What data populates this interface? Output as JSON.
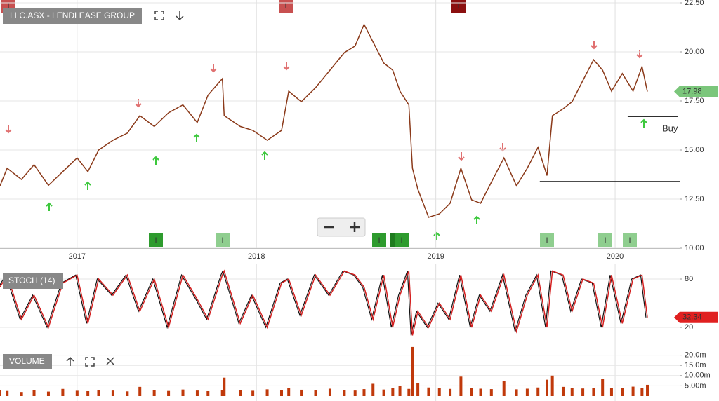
{
  "chart_data": [
    {
      "type": "line",
      "title": "LLC.ASX - LENDLEASE GROUP",
      "color": "#8b3a1a",
      "x": [
        2016.57,
        2016.61,
        2016.69,
        2016.76,
        2016.84,
        2016.92,
        2017.0,
        2017.06,
        2017.12,
        2017.2,
        2017.28,
        2017.35,
        2017.43,
        2017.51,
        2017.59,
        2017.67,
        2017.73,
        2017.81,
        2017.82,
        2017.91,
        2017.98,
        2018.06,
        2018.14,
        2018.18,
        2018.25,
        2018.33,
        2018.41,
        2018.49,
        2018.55,
        2018.6,
        2018.65,
        2018.71,
        2018.76,
        2018.8,
        2018.85,
        2018.87,
        2018.9,
        2018.96,
        2019.02,
        2019.08,
        2019.14,
        2019.2,
        2019.25,
        2019.31,
        2019.38,
        2019.45,
        2019.51,
        2019.57,
        2019.62,
        2019.65,
        2019.71,
        2019.76,
        2019.82,
        2019.88,
        2019.93,
        2019.98,
        2020.04,
        2020.1,
        2020.15,
        2020.18
      ],
      "values": [
        13.18,
        14.07,
        13.5,
        14.25,
        13.2,
        13.9,
        14.6,
        13.9,
        15,
        15.5,
        15.86,
        16.75,
        16.2,
        16.9,
        17.3,
        16.4,
        17.8,
        18.64,
        16.75,
        16.2,
        16.0,
        15.5,
        16.0,
        18,
        17.46,
        18.18,
        19.07,
        19.96,
        20.3,
        21.4,
        20.5,
        19.43,
        19.07,
        18,
        17.3,
        14.07,
        13,
        11.57,
        11.75,
        12.29,
        14.07,
        12.46,
        12.29,
        13.36,
        14.6,
        13.18,
        14.07,
        15.14,
        13.7,
        16.75,
        17.1,
        17.46,
        18.54,
        19.6,
        19.07,
        18,
        18.9,
        18,
        19.25,
        17.98
      ],
      "xlim": [
        2016.57,
        2020.36
      ],
      "xticks": [
        2017,
        2018,
        2019,
        2020
      ],
      "ylim": [
        10,
        22.5
      ],
      "yticks": [
        {
          "value": 10,
          "label": "10.00"
        },
        {
          "value": 12.5,
          "label": "12.50"
        },
        {
          "value": 15,
          "label": "15.00"
        },
        {
          "value": 17.5,
          "label": "17.50"
        },
        {
          "value": 20,
          "label": "20.00"
        },
        {
          "value": 22.5,
          "label": "22.50"
        }
      ],
      "last_value": 17.98,
      "hlines": [
        {
          "value": 16.7,
          "x": [
            2020.07,
            2020.35
          ]
        },
        {
          "value": 13.4,
          "x": [
            2019.58,
            2020.36
          ]
        }
      ],
      "annotation": "Buy",
      "event_label": "I",
      "grid": true
    },
    {
      "type": "line",
      "title": "STOCH (14)",
      "color": "#d42020",
      "x": [
        2016.57,
        2016.61,
        2016.69,
        2016.76,
        2016.84,
        2016.92,
        2017.0,
        2017.06,
        2017.12,
        2017.2,
        2017.28,
        2017.35,
        2017.43,
        2017.51,
        2017.59,
        2017.67,
        2017.73,
        2017.81,
        2017.82,
        2017.91,
        2017.98,
        2018.06,
        2018.14,
        2018.18,
        2018.25,
        2018.33,
        2018.41,
        2018.49,
        2018.55,
        2018.6,
        2018.65,
        2018.71,
        2018.76,
        2018.8,
        2018.85,
        2018.87,
        2018.9,
        2018.96,
        2019.02,
        2019.08,
        2019.14,
        2019.2,
        2019.25,
        2019.31,
        2019.38,
        2019.45,
        2019.51,
        2019.57,
        2019.62,
        2019.65,
        2019.71,
        2019.76,
        2019.82,
        2019.88,
        2019.93,
        2019.98,
        2020.04,
        2020.1,
        2020.15,
        2020.18
      ],
      "values": [
        70,
        85,
        30,
        60,
        20,
        75,
        85,
        25,
        80,
        60,
        85,
        40,
        80,
        20,
        85,
        55,
        30,
        85,
        90,
        25,
        60,
        20,
        75,
        80,
        35,
        85,
        60,
        90,
        85,
        70,
        30,
        85,
        20,
        60,
        90,
        10,
        40,
        20,
        50,
        30,
        85,
        20,
        60,
        40,
        85,
        15,
        60,
        85,
        20,
        90,
        85,
        40,
        80,
        75,
        20,
        85,
        25,
        80,
        85,
        32.34
      ],
      "xlim": [
        2016.57,
        2020.36
      ],
      "ylim": [
        0,
        100
      ],
      "yticks": [
        20,
        80
      ],
      "last_value": 32.34
    },
    {
      "type": "bar",
      "title": "VOLUME",
      "color": "#c0390b",
      "x": [
        2016.57,
        2016.61,
        2016.69,
        2016.76,
        2016.84,
        2016.92,
        2017.0,
        2017.06,
        2017.12,
        2017.2,
        2017.28,
        2017.35,
        2017.43,
        2017.51,
        2017.59,
        2017.67,
        2017.73,
        2017.81,
        2017.82,
        2017.91,
        2017.98,
        2018.06,
        2018.14,
        2018.18,
        2018.25,
        2018.33,
        2018.41,
        2018.49,
        2018.55,
        2018.6,
        2018.65,
        2018.71,
        2018.76,
        2018.8,
        2018.85,
        2018.87,
        2018.9,
        2018.96,
        2019.02,
        2019.08,
        2019.14,
        2019.2,
        2019.25,
        2019.31,
        2019.38,
        2019.45,
        2019.51,
        2019.57,
        2019.62,
        2019.65,
        2019.71,
        2019.76,
        2019.82,
        2019.88,
        2019.93,
        2019.98,
        2020.04,
        2020.1,
        2020.15,
        2020.18
      ],
      "values": [
        3000000,
        2500000,
        2000000,
        2800000,
        2200000,
        3500000,
        2600000,
        2400000,
        3000000,
        2700000,
        2300000,
        4500000,
        2900000,
        2500000,
        3200000,
        2700000,
        2400000,
        3000000,
        9000000,
        2800000,
        2600000,
        3300000,
        2900000,
        4000000,
        3100000,
        2800000,
        3600000,
        3000000,
        2700000,
        3400000,
        6000000,
        3200000,
        3800000,
        5000000,
        3500000,
        24000000,
        6500000,
        4200000,
        3800000,
        3500000,
        9500000,
        4000000,
        3600000,
        3400000,
        7500000,
        3300000,
        3600000,
        4200000,
        8000000,
        10000000,
        4500000,
        3900000,
        3700000,
        4100000,
        8500000,
        3800000,
        4000000,
        4600000,
        3900000,
        5500000
      ],
      "xlim": [
        2016.57,
        2020.36
      ],
      "ylim": [
        0,
        25000000
      ],
      "yticks": [
        {
          "value": 5000000,
          "label": "5.00m"
        },
        {
          "value": 10000000,
          "label": "10.00m"
        },
        {
          "value": 15000000,
          "label": "15.0m"
        },
        {
          "value": 20000000,
          "label": "20.0m"
        }
      ]
    }
  ]
}
